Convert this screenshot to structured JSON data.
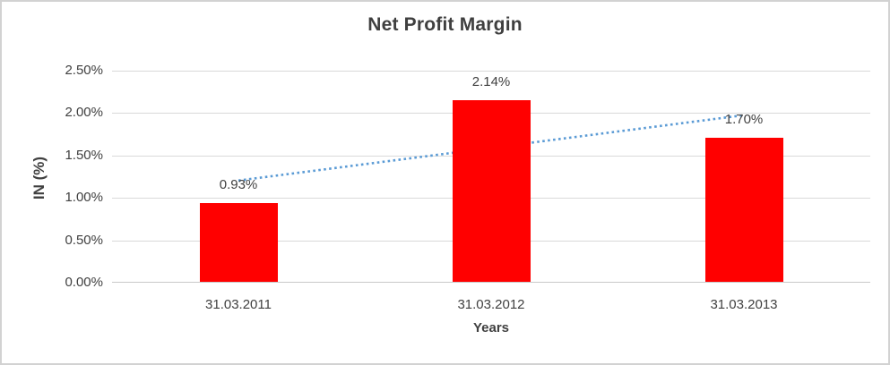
{
  "chart_data": {
    "type": "bar",
    "title": "Net Profit Margin",
    "categories": [
      "31.03.2011",
      "31.03.2012",
      "31.03.2013"
    ],
    "values": [
      0.93,
      2.14,
      1.7
    ],
    "data_labels": [
      "0.93%",
      "2.14%",
      "1.70%"
    ],
    "xlabel": "Years",
    "ylabel": "IN (%)",
    "ylim": [
      0,
      2.5
    ],
    "yticks": [
      "0.00%",
      "0.50%",
      "1.00%",
      "1.50%",
      "2.00%",
      "2.50%"
    ],
    "grid": true,
    "legend": "none",
    "bar_color": "#FF0000",
    "trendline": {
      "type": "linear",
      "style": "dotted",
      "color": "#5B9BD5"
    },
    "colors": {
      "title_text": "#3F3F3F",
      "axis_text": "#404040",
      "gridline": "#D9D9D9",
      "axis_line": "#C9C9C9",
      "frame_border": "#D2D2D2",
      "background": "#FFFFFF"
    }
  }
}
